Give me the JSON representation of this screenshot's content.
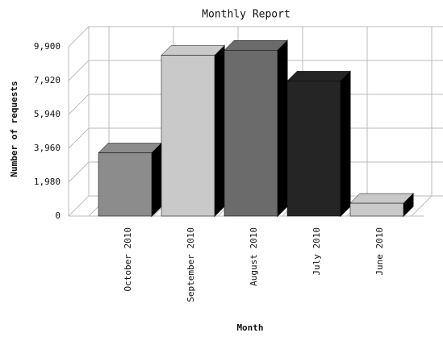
{
  "chart_data": {
    "type": "bar3d",
    "title": "Monthly Report",
    "x_label": "Month",
    "y_label": "Number of requests",
    "categories": [
      "October 2010",
      "September 2010",
      "August 2010",
      "July 2010",
      "June 2010"
    ],
    "values": [
      3700,
      9400,
      9700,
      7900,
      750
    ],
    "colors": [
      "#8c8c8c",
      "#c9c9c9",
      "#6b6b6b",
      "#252525",
      "#c9c9c9"
    ],
    "ylim": [
      0,
      9900
    ],
    "yticks": [
      0,
      {
        "value": 1980,
        "label": "1,980"
      },
      {
        "value": 3960,
        "label": "3,960"
      },
      {
        "value": 5940,
        "label": "5,940"
      },
      {
        "value": 7920,
        "label": "7,920"
      },
      {
        "value": 9900,
        "label": "9,900"
      }
    ],
    "grid": true
  }
}
